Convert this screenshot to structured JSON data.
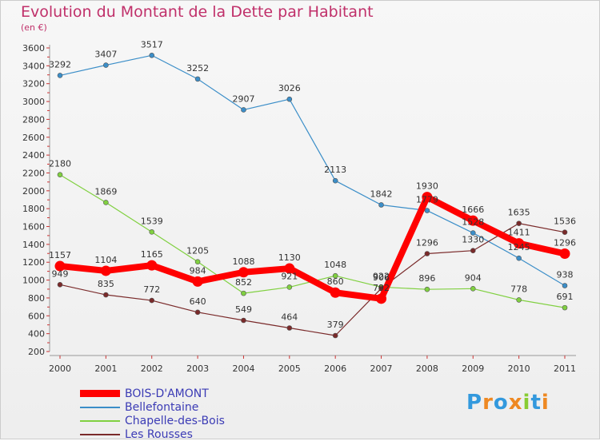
{
  "title": "Evolution du Montant de la Dette par Habitant",
  "unit": "(en €)",
  "logo": "Proxiti",
  "chart_data": {
    "type": "line",
    "title": "Evolution du Montant de la Dette par Habitant",
    "ylabel": "(en €)",
    "xlabel": "",
    "ylim": [
      200,
      3600
    ],
    "yticks": [
      200,
      400,
      600,
      800,
      1000,
      1200,
      1400,
      1600,
      1800,
      2000,
      2200,
      2400,
      2600,
      2800,
      3000,
      3200,
      3400,
      3600
    ],
    "grid": false,
    "legend_position": "bottom-left",
    "x": [
      "2000",
      "2001",
      "2002",
      "2003",
      "2004",
      "2005",
      "2006",
      "2007",
      "2008",
      "2009",
      "2010",
      "2011"
    ],
    "series": [
      {
        "name": "BOIS-D'AMONT",
        "color": "#ff0000",
        "values": [
          1157,
          1104,
          1165,
          984,
          1088,
          1130,
          860,
          792,
          1930,
          1666,
          1411,
          1296
        ]
      },
      {
        "name": "Bellefontaine",
        "color": "#3b8ec8",
        "values": [
          3292,
          3407,
          3517,
          3252,
          2907,
          3026,
          2113,
          1842,
          1779,
          1528,
          1245,
          938
        ]
      },
      {
        "name": "Chapelle-des-Bois",
        "color": "#80d040",
        "values": [
          2180,
          1869,
          1539,
          1205,
          852,
          921,
          1048,
          922,
          896,
          904,
          778,
          691
        ]
      },
      {
        "name": "Les Rousses",
        "color": "#7a2a2a",
        "values": [
          949,
          835,
          772,
          640,
          549,
          464,
          379,
          906,
          1296,
          1330,
          1635,
          1536
        ]
      }
    ]
  }
}
